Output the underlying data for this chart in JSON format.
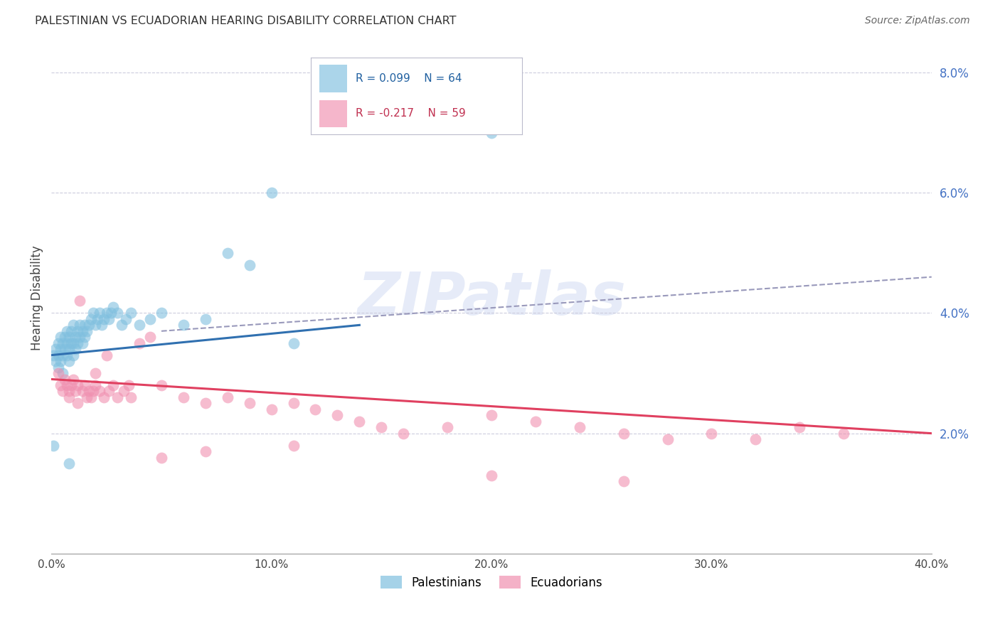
{
  "title": "PALESTINIAN VS ECUADORIAN HEARING DISABILITY CORRELATION CHART",
  "source": "Source: ZipAtlas.com",
  "ylabel": "Hearing Disability",
  "xlim": [
    0.0,
    0.4
  ],
  "ylim": [
    0.0,
    0.085
  ],
  "xtick_vals": [
    0.0,
    0.1,
    0.2,
    0.3,
    0.4
  ],
  "xtick_labels": [
    "0.0%",
    "10.0%",
    "20.0%",
    "30.0%",
    "40.0%"
  ],
  "ytick_vals": [
    0.02,
    0.04,
    0.06,
    0.08
  ],
  "ytick_labels": [
    "2.0%",
    "4.0%",
    "6.0%",
    "8.0%"
  ],
  "blue_scatter_color": "#7fbfdf",
  "pink_scatter_color": "#f090b0",
  "blue_line_color": "#3070b0",
  "pink_line_color": "#e04060",
  "dashed_line_color": "#9999bb",
  "grid_color": "#ccccdd",
  "legend_blue_R": "R = 0.099",
  "legend_blue_N": "N = 64",
  "legend_pink_R": "R = -0.217",
  "legend_pink_N": "N = 59",
  "watermark": "ZIPatlas",
  "palestinians_x": [
    0.001,
    0.002,
    0.002,
    0.003,
    0.003,
    0.003,
    0.004,
    0.004,
    0.004,
    0.005,
    0.005,
    0.005,
    0.006,
    0.006,
    0.007,
    0.007,
    0.007,
    0.008,
    0.008,
    0.008,
    0.009,
    0.009,
    0.01,
    0.01,
    0.01,
    0.011,
    0.011,
    0.012,
    0.012,
    0.013,
    0.013,
    0.014,
    0.014,
    0.015,
    0.015,
    0.016,
    0.017,
    0.018,
    0.019,
    0.02,
    0.021,
    0.022,
    0.023,
    0.024,
    0.025,
    0.026,
    0.027,
    0.028,
    0.03,
    0.032,
    0.034,
    0.036,
    0.04,
    0.045,
    0.05,
    0.06,
    0.07,
    0.08,
    0.09,
    0.1,
    0.11,
    0.2,
    0.001,
    0.008
  ],
  "palestinians_y": [
    0.033,
    0.032,
    0.034,
    0.031,
    0.033,
    0.035,
    0.032,
    0.034,
    0.036,
    0.03,
    0.033,
    0.035,
    0.034,
    0.036,
    0.033,
    0.035,
    0.037,
    0.032,
    0.034,
    0.036,
    0.035,
    0.037,
    0.033,
    0.035,
    0.038,
    0.034,
    0.036,
    0.035,
    0.037,
    0.036,
    0.038,
    0.035,
    0.037,
    0.036,
    0.038,
    0.037,
    0.038,
    0.039,
    0.04,
    0.038,
    0.039,
    0.04,
    0.038,
    0.039,
    0.04,
    0.039,
    0.04,
    0.041,
    0.04,
    0.038,
    0.039,
    0.04,
    0.038,
    0.039,
    0.04,
    0.038,
    0.039,
    0.05,
    0.048,
    0.06,
    0.035,
    0.07,
    0.018,
    0.015
  ],
  "ecuadorians_x": [
    0.003,
    0.004,
    0.005,
    0.006,
    0.007,
    0.008,
    0.009,
    0.01,
    0.011,
    0.012,
    0.013,
    0.014,
    0.015,
    0.016,
    0.017,
    0.018,
    0.019,
    0.02,
    0.022,
    0.024,
    0.026,
    0.028,
    0.03,
    0.033,
    0.036,
    0.04,
    0.045,
    0.05,
    0.06,
    0.07,
    0.08,
    0.09,
    0.1,
    0.11,
    0.12,
    0.13,
    0.14,
    0.15,
    0.16,
    0.18,
    0.2,
    0.22,
    0.24,
    0.26,
    0.28,
    0.3,
    0.32,
    0.34,
    0.36,
    0.008,
    0.012,
    0.02,
    0.025,
    0.035,
    0.05,
    0.07,
    0.11,
    0.2,
    0.26
  ],
  "ecuadorians_y": [
    0.03,
    0.028,
    0.027,
    0.029,
    0.028,
    0.027,
    0.028,
    0.029,
    0.027,
    0.028,
    0.042,
    0.027,
    0.028,
    0.026,
    0.027,
    0.026,
    0.027,
    0.028,
    0.027,
    0.026,
    0.027,
    0.028,
    0.026,
    0.027,
    0.026,
    0.035,
    0.036,
    0.028,
    0.026,
    0.025,
    0.026,
    0.025,
    0.024,
    0.025,
    0.024,
    0.023,
    0.022,
    0.021,
    0.02,
    0.021,
    0.023,
    0.022,
    0.021,
    0.02,
    0.019,
    0.02,
    0.019,
    0.021,
    0.02,
    0.026,
    0.025,
    0.03,
    0.033,
    0.028,
    0.016,
    0.017,
    0.018,
    0.013,
    0.012
  ]
}
